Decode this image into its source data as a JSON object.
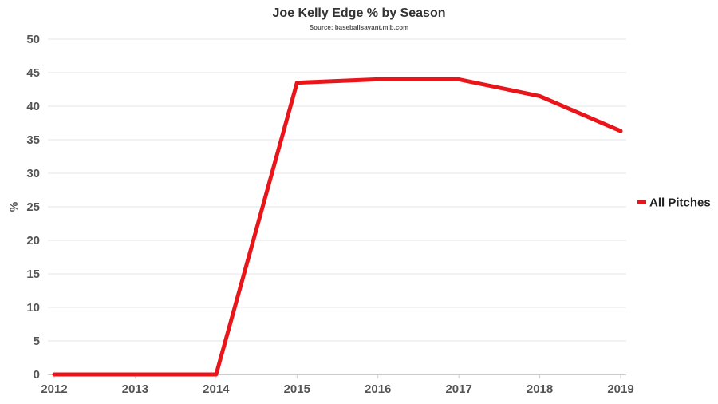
{
  "chart_data": {
    "type": "line",
    "title": "Joe Kelly Edge % by Season",
    "subtitle": "Source: baseballsavant.mlb.com",
    "xlabel": "",
    "ylabel": "%",
    "x": [
      "2012",
      "2013",
      "2014",
      "2015",
      "2016",
      "2017",
      "2018",
      "2019"
    ],
    "series": [
      {
        "name": "All Pitches",
        "color": "#e8161b",
        "values": [
          0,
          0,
          0,
          43.5,
          44.0,
          44.0,
          41.5,
          36.3
        ]
      }
    ],
    "ylim": [
      0,
      50
    ],
    "yticks": [
      0,
      5,
      10,
      15,
      20,
      25,
      30,
      35,
      40,
      45,
      50
    ],
    "grid": true,
    "legend_position": "right"
  }
}
